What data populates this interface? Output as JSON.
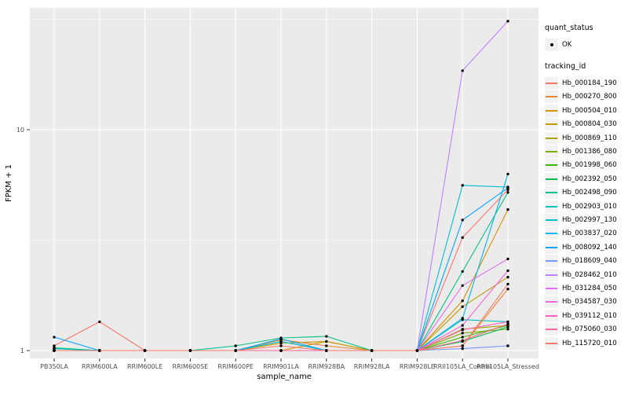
{
  "colors": {
    "panel_background": "#EBEBEB",
    "grid_major": "#FFFFFF",
    "grid_minor": "#F7F7F7",
    "tick_text": "#4D4D4D",
    "axis_title_text": "#000000",
    "point": "#000000",
    "legend_key_background": "#F2F2F2"
  },
  "legend": {
    "quant_title": "quant_status",
    "quant_items": [
      {
        "label": "OK",
        "marker": "point"
      }
    ],
    "tracking_title": "tracking_id"
  },
  "chart_data": {
    "type": "line",
    "title": "",
    "xlabel": "sample_name",
    "ylabel": "FPKM + 1",
    "y_scale": "log10",
    "y_ticks": [
      1,
      10
    ],
    "y_minor_ticks": [
      3.1623,
      31.623
    ],
    "ylim": [
      0.93,
      35.6
    ],
    "grid": "major white + minor white on gray panel",
    "legend_position": "right",
    "point_marker": "small black point (quant_status OK)",
    "categories": [
      "PB350LA",
      "RRIM600LA",
      "RRIM600LE",
      "RRIM600SE",
      "RRIM600PE",
      "RRIM901LA",
      "RRIM928BA",
      "RRIM928LA",
      "RRIM928LE",
      "RRII105LA_Control",
      "RRII105LA_Stressed"
    ],
    "series": [
      {
        "name": "Hb_000184_190",
        "color": "#F8766D",
        "values": [
          1.05,
          1.35,
          1.0,
          1.0,
          1.0,
          1.1,
          1.0,
          1.0,
          1.0,
          3.25,
          5.35
        ]
      },
      {
        "name": "Hb_000270_800",
        "color": "#EA8331",
        "values": [
          1.0,
          1.0,
          1.0,
          1.0,
          1.0,
          1.12,
          1.05,
          1.0,
          1.0,
          1.05,
          1.9
        ]
      },
      {
        "name": "Hb_000504_010",
        "color": "#D89000",
        "values": [
          1.0,
          1.0,
          1.0,
          1.0,
          1.0,
          1.0,
          1.1,
          1.0,
          1.0,
          1.68,
          4.35
        ]
      },
      {
        "name": "Hb_000804_030",
        "color": "#C09B00",
        "values": [
          1.0,
          1.0,
          1.0,
          1.0,
          1.0,
          1.08,
          1.1,
          1.0,
          1.0,
          1.58,
          2.15
        ]
      },
      {
        "name": "Hb_000869_110",
        "color": "#A3A500",
        "values": [
          1.0,
          1.0,
          1.0,
          1.0,
          1.0,
          1.0,
          1.0,
          1.0,
          1.0,
          1.25,
          1.3
        ]
      },
      {
        "name": "Hb_001386_080",
        "color": "#7CAE00",
        "values": [
          1.0,
          1.0,
          1.0,
          1.0,
          1.0,
          1.0,
          1.0,
          1.0,
          1.0,
          1.2,
          1.25
        ]
      },
      {
        "name": "Hb_001998_060",
        "color": "#39B600",
        "values": [
          1.0,
          1.0,
          1.0,
          1.0,
          1.0,
          1.0,
          1.0,
          1.0,
          1.0,
          1.15,
          1.3
        ]
      },
      {
        "name": "Hb_002392_050",
        "color": "#00BB4E",
        "values": [
          1.02,
          1.0,
          1.0,
          1.0,
          1.0,
          1.0,
          1.0,
          1.0,
          1.0,
          1.1,
          1.28
        ]
      },
      {
        "name": "Hb_002498_090",
        "color": "#00C087",
        "values": [
          1.03,
          1.0,
          1.0,
          1.0,
          1.05,
          1.14,
          1.16,
          1.0,
          1.0,
          2.28,
          5.2
        ]
      },
      {
        "name": "Hb_002903_010",
        "color": "#00C0B8",
        "values": [
          1.02,
          1.0,
          1.0,
          1.0,
          1.0,
          1.0,
          1.0,
          1.0,
          1.0,
          1.38,
          1.35
        ]
      },
      {
        "name": "Hb_002997_130",
        "color": "#00BDD0",
        "values": [
          1.0,
          1.0,
          1.0,
          1.0,
          1.0,
          1.1,
          1.0,
          1.0,
          1.0,
          5.6,
          5.5
        ]
      },
      {
        "name": "Hb_003837_020",
        "color": "#00B5EE",
        "values": [
          1.0,
          1.0,
          1.0,
          1.0,
          1.0,
          1.0,
          1.0,
          1.0,
          1.0,
          1.4,
          6.3
        ]
      },
      {
        "name": "Hb_008092_140",
        "color": "#00A5FF",
        "values": [
          1.15,
          1.0,
          1.0,
          1.0,
          1.0,
          1.13,
          1.0,
          1.0,
          1.0,
          3.9,
          5.45
        ]
      },
      {
        "name": "Hb_018609_040",
        "color": "#7997FF",
        "values": [
          1.0,
          1.0,
          1.0,
          1.0,
          1.0,
          1.0,
          1.0,
          1.0,
          1.0,
          1.02,
          1.05
        ]
      },
      {
        "name": "Hb_028462_010",
        "color": "#BC81FF",
        "values": [
          1.0,
          1.0,
          1.0,
          1.0,
          1.0,
          1.0,
          1.0,
          1.0,
          1.0,
          18.5,
          31.0
        ]
      },
      {
        "name": "Hb_031284_050",
        "color": "#E26EF7",
        "values": [
          1.0,
          1.0,
          1.0,
          1.0,
          1.0,
          1.0,
          1.0,
          1.0,
          1.0,
          1.97,
          2.6
        ]
      },
      {
        "name": "Hb_034587_030",
        "color": "#F863E0",
        "values": [
          1.0,
          1.0,
          1.0,
          1.0,
          1.0,
          1.0,
          1.0,
          1.0,
          1.0,
          1.3,
          2.3
        ]
      },
      {
        "name": "Hb_039112_010",
        "color": "#FF62BF",
        "values": [
          1.0,
          1.0,
          1.0,
          1.0,
          1.0,
          1.0,
          1.0,
          1.0,
          1.0,
          1.24,
          1.35
        ]
      },
      {
        "name": "Hb_075060_030",
        "color": "#FF6A9A",
        "values": [
          1.0,
          1.0,
          1.0,
          1.0,
          1.0,
          1.0,
          1.0,
          1.0,
          1.0,
          1.11,
          1.32
        ]
      },
      {
        "name": "Hb_115720_010",
        "color": "#FF796B",
        "values": [
          1.0,
          1.0,
          1.0,
          1.0,
          1.0,
          1.05,
          1.0,
          1.0,
          1.0,
          1.05,
          2.0
        ]
      }
    ]
  }
}
